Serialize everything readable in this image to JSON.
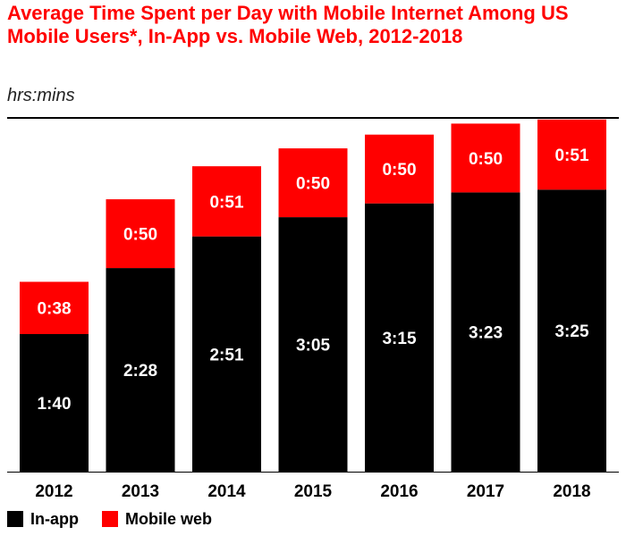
{
  "chart_data": {
    "type": "bar",
    "stacked": true,
    "title": "Average Time Spent per Day with Mobile Internet Among US Mobile Users*, In-App vs. Mobile Web, 2012-2018",
    "subtitle": "hrs:mins",
    "categories": [
      "2012",
      "2013",
      "2014",
      "2015",
      "2016",
      "2017",
      "2018"
    ],
    "series": [
      {
        "name": "In-app",
        "color": "#000000",
        "values": [
          100,
          148,
          171,
          185,
          195,
          203,
          205
        ],
        "labels": [
          "1:40",
          "2:28",
          "2:51",
          "3:05",
          "3:15",
          "3:23",
          "3:25"
        ]
      },
      {
        "name": "Mobile web",
        "color": "#ff0000",
        "values": [
          38,
          50,
          51,
          50,
          50,
          50,
          51
        ],
        "labels": [
          "0:38",
          "0:50",
          "0:51",
          "0:50",
          "0:50",
          "0:50",
          "0:51"
        ]
      }
    ],
    "ylim": [
      0,
      256
    ],
    "grid": false,
    "legend_position": "bottom-left"
  }
}
